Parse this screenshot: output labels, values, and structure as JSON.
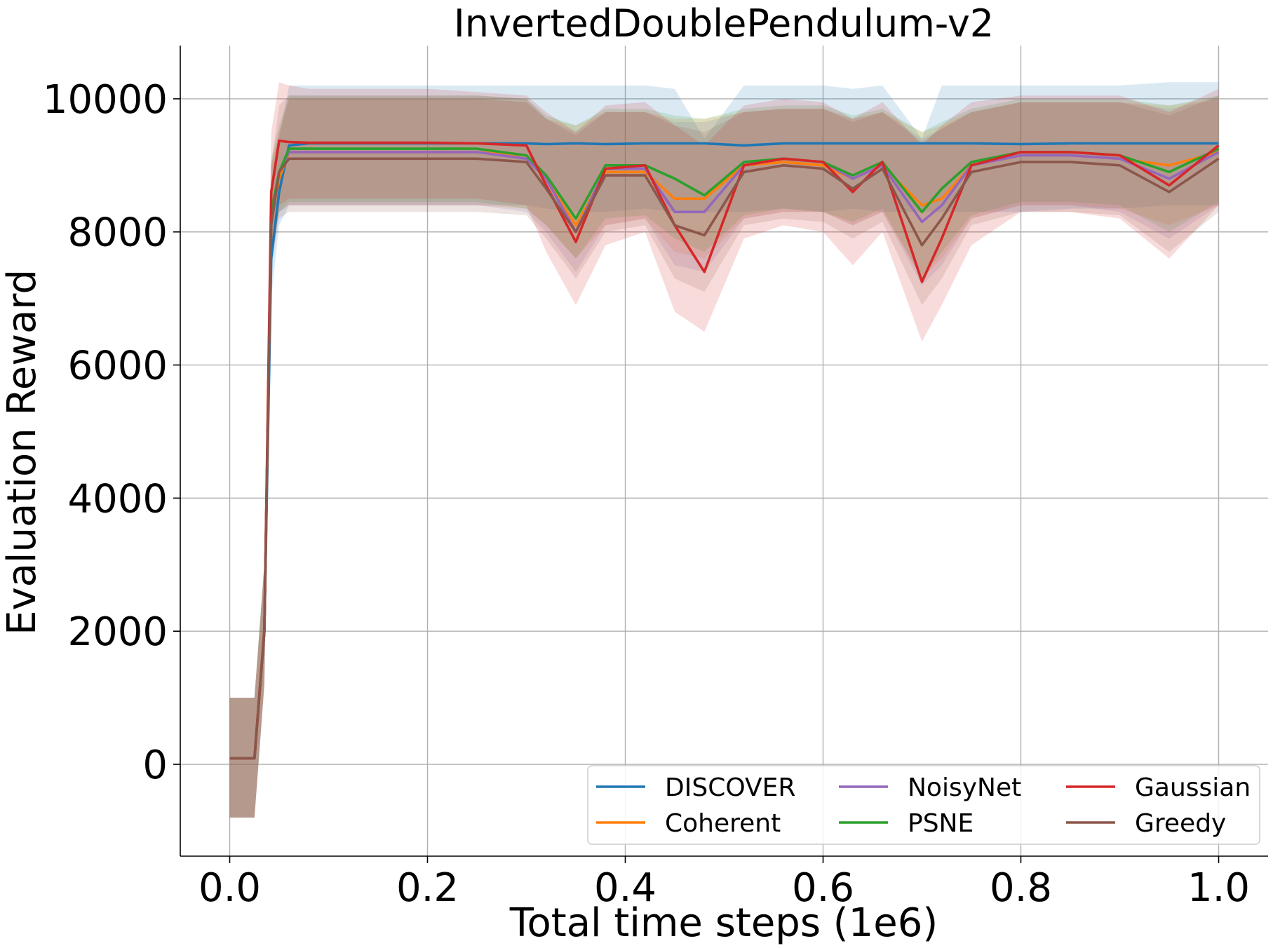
{
  "chart_data": {
    "type": "line",
    "title": "InvertedDoublePendulum-v2",
    "xlabel": "Total time steps (1e6)",
    "ylabel": "Evaluation Reward",
    "xlim": [
      -0.05,
      1.05
    ],
    "ylim": [
      -1380,
      10800
    ],
    "x_ticks": [
      0.0,
      0.2,
      0.4,
      0.6,
      0.8,
      1.0
    ],
    "x_tick_labels": [
      "0.0",
      "0.2",
      "0.4",
      "0.6",
      "0.8",
      "1.0"
    ],
    "y_ticks": [
      0,
      2000,
      4000,
      6000,
      8000,
      10000
    ],
    "y_tick_labels": [
      "0",
      "2000",
      "4000",
      "6000",
      "8000",
      "10000"
    ],
    "grid": true,
    "legend_position": "lower-right",
    "legend_columns": 3,
    "x": [
      0.0,
      0.025,
      0.035,
      0.042,
      0.05,
      0.06,
      0.08,
      0.1,
      0.15,
      0.2,
      0.25,
      0.3,
      0.32,
      0.35,
      0.38,
      0.42,
      0.45,
      0.48,
      0.52,
      0.56,
      0.6,
      0.63,
      0.66,
      0.7,
      0.72,
      0.75,
      0.8,
      0.85,
      0.9,
      0.95,
      1.0
    ],
    "series": [
      {
        "name": "DISCOVER",
        "color": "#1f77b4",
        "values": [
          90,
          90,
          2000,
          7600,
          8600,
          9300,
          9330,
          9330,
          9330,
          9330,
          9330,
          9330,
          9320,
          9330,
          9320,
          9330,
          9330,
          9330,
          9300,
          9330,
          9330,
          9330,
          9330,
          9330,
          9330,
          9330,
          9320,
          9330,
          9330,
          9330,
          9330
        ],
        "band": [
          [
            -800,
            -800,
            1200,
            7000,
            8100,
            8400,
            8400,
            8400,
            8400,
            8400,
            8400,
            8400,
            8350,
            8300,
            8300,
            8350,
            8300,
            8300,
            8300,
            8350,
            8300,
            8350,
            8300,
            8300,
            8300,
            8300,
            8300,
            8350,
            8350,
            8400,
            8400
          ],
          [
            1000,
            1000,
            3000,
            8400,
            9400,
            10200,
            10200,
            10200,
            10200,
            10200,
            10200,
            10200,
            10200,
            10200,
            10200,
            10200,
            10150,
            9400,
            10200,
            10200,
            10200,
            10150,
            10200,
            9400,
            10200,
            10200,
            10200,
            10200,
            10200,
            10250,
            10250
          ]
        ]
      },
      {
        "name": "Coherent",
        "color": "#ff7f0e",
        "values": [
          90,
          90,
          2000,
          8200,
          8800,
          9200,
          9200,
          9200,
          9200,
          9200,
          9200,
          9150,
          8800,
          8100,
          8900,
          8900,
          8500,
          8500,
          9000,
          9050,
          9000,
          8800,
          9000,
          8400,
          8500,
          9000,
          9150,
          9150,
          9100,
          9000,
          9200
        ],
        "band": [
          [
            -800,
            -800,
            1200,
            7600,
            8300,
            8400,
            8400,
            8400,
            8400,
            8400,
            8400,
            8350,
            8100,
            7600,
            8100,
            8200,
            7700,
            7600,
            8200,
            8300,
            8300,
            8100,
            8300,
            7300,
            7600,
            8200,
            8400,
            8400,
            8350,
            8100,
            8400
          ],
          [
            1000,
            1000,
            3000,
            9000,
            9500,
            10000,
            10000,
            10000,
            10000,
            10000,
            10000,
            9950,
            9700,
            9600,
            9800,
            9800,
            9700,
            9700,
            9800,
            9850,
            9850,
            9700,
            9800,
            9500,
            9600,
            9800,
            9950,
            9950,
            9950,
            9900,
            10000
          ]
        ]
      },
      {
        "name": "NoisyNet",
        "color": "#9467bd",
        "values": [
          90,
          90,
          2000,
          8200,
          8900,
          9200,
          9200,
          9200,
          9200,
          9200,
          9200,
          9100,
          8800,
          8000,
          8950,
          8950,
          8300,
          8300,
          9000,
          9100,
          9050,
          8800,
          9000,
          8150,
          8400,
          9000,
          9150,
          9150,
          9100,
          8800,
          9200
        ],
        "band": [
          [
            -800,
            -800,
            1200,
            7600,
            8300,
            8400,
            8400,
            8400,
            8400,
            8400,
            8400,
            8300,
            8000,
            7400,
            8100,
            8200,
            7500,
            7400,
            8200,
            8300,
            8300,
            8100,
            8300,
            7200,
            7500,
            8200,
            8400,
            8400,
            8300,
            7900,
            8400
          ],
          [
            1000,
            1000,
            3000,
            9000,
            9500,
            10000,
            10000,
            10000,
            10000,
            10000,
            10000,
            9950,
            9700,
            9500,
            9800,
            9800,
            9650,
            9650,
            9800,
            9850,
            9850,
            9700,
            9800,
            9400,
            9550,
            9800,
            9950,
            9950,
            9950,
            9850,
            10000
          ]
        ]
      },
      {
        "name": "PSNE",
        "color": "#2ca02c",
        "values": [
          90,
          90,
          2000,
          8300,
          8900,
          9250,
          9250,
          9250,
          9250,
          9250,
          9250,
          9150,
          8850,
          8200,
          9000,
          9000,
          8800,
          8550,
          9050,
          9100,
          9050,
          8850,
          9050,
          8300,
          8650,
          9050,
          9200,
          9200,
          9150,
          8900,
          9250
        ],
        "band": [
          [
            -800,
            -800,
            1200,
            7700,
            8300,
            8450,
            8450,
            8450,
            8450,
            8450,
            8450,
            8350,
            8100,
            7600,
            8200,
            8250,
            7900,
            7700,
            8250,
            8350,
            8300,
            8150,
            8350,
            7300,
            7700,
            8250,
            8450,
            8450,
            8400,
            8000,
            8450
          ],
          [
            1000,
            1000,
            3000,
            9100,
            9600,
            10050,
            10050,
            10050,
            10050,
            10050,
            10050,
            10000,
            9750,
            9600,
            9850,
            9850,
            9750,
            9700,
            9850,
            9900,
            9900,
            9750,
            9850,
            9500,
            9650,
            9850,
            10000,
            10000,
            10000,
            9900,
            10050
          ]
        ]
      },
      {
        "name": "Gaussian",
        "color": "#d62728",
        "values": [
          90,
          90,
          2000,
          8600,
          9370,
          9350,
          9340,
          9340,
          9340,
          9340,
          9330,
          9300,
          8700,
          7850,
          8950,
          9000,
          8100,
          7400,
          9000,
          9100,
          9050,
          8600,
          9050,
          7250,
          7900,
          9000,
          9200,
          9200,
          9150,
          8700,
          9300
        ],
        "band": [
          [
            -800,
            -800,
            1200,
            7400,
            8400,
            8500,
            8500,
            8500,
            8500,
            8500,
            8500,
            8400,
            7700,
            6900,
            7800,
            8000,
            6800,
            6500,
            7900,
            8100,
            8000,
            7500,
            8000,
            6350,
            6900,
            7800,
            8300,
            8300,
            8200,
            7600,
            8400
          ],
          [
            1000,
            1000,
            3000,
            9500,
            10250,
            10200,
            10150,
            10150,
            10150,
            10150,
            10100,
            10050,
            9800,
            9500,
            9900,
            9950,
            9600,
            9300,
            9900,
            10000,
            9950,
            9700,
            9950,
            9300,
            9600,
            9950,
            10050,
            10050,
            10050,
            9800,
            10150
          ]
        ]
      },
      {
        "name": "Greedy",
        "color": "#8c564b",
        "values": [
          90,
          90,
          2000,
          8100,
          8900,
          9100,
          9100,
          9100,
          9100,
          9100,
          9100,
          9050,
          8650,
          8000,
          8850,
          8850,
          8100,
          7950,
          8900,
          9000,
          8950,
          8650,
          8950,
          7800,
          8200,
          8900,
          9050,
          9050,
          9000,
          8600,
          9100
        ],
        "band": [
          [
            -800,
            -800,
            1200,
            7500,
            8200,
            8300,
            8300,
            8300,
            8300,
            8300,
            8300,
            8250,
            7900,
            7300,
            8000,
            8100,
            7300,
            7100,
            8100,
            8200,
            8150,
            7900,
            8150,
            6900,
            7300,
            8100,
            8300,
            8300,
            8250,
            7700,
            8300
          ],
          [
            1000,
            1000,
            3000,
            9000,
            9900,
            10050,
            10050,
            10050,
            10050,
            10050,
            10050,
            10000,
            9700,
            9450,
            9800,
            9800,
            9600,
            9500,
            9800,
            9850,
            9850,
            9650,
            9800,
            9350,
            9550,
            9800,
            9950,
            9950,
            9950,
            9750,
            10050
          ]
        ]
      }
    ]
  }
}
